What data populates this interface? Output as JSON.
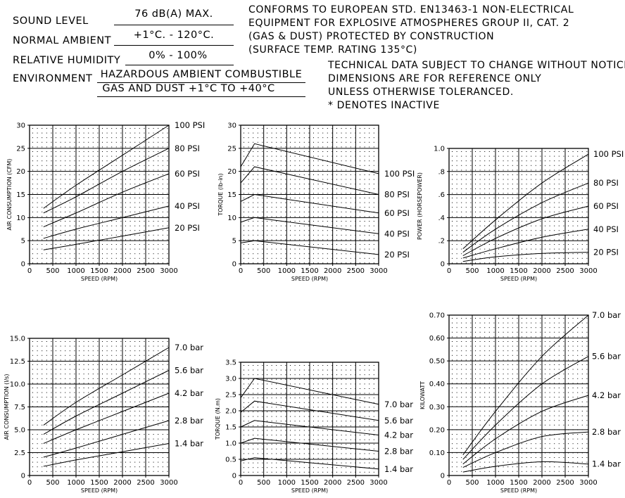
{
  "specs": {
    "sound_level_label": "SOUND LEVEL",
    "sound_level_value": "76 dB(A) MAX.",
    "normal_ambient_label": "NORMAL AMBIENT",
    "normal_ambient_value": "+1°C. - 120°C.",
    "relative_humidity_label": "RELATIVE HUMIDITY",
    "relative_humidity_value": "0% - 100%",
    "environment_label": "ENVIRONMENT",
    "environment_value_1": "HAZARDOUS AMBIENT COMBUSTIBLE",
    "environment_value_2": "GAS AND DUST +1°C TO +40°C"
  },
  "conformity": [
    "CONFORMS TO EUROPEAN STD. EN13463-1 NON-ELECTRICAL",
    "EQUIPMENT FOR EXPLOSIVE ATMOSPHERES GROUP II, CAT. 2",
    "(GAS & DUST) PROTECTED BY CONSTRUCTION",
    "(SURFACE TEMP. RATING 135°C)"
  ],
  "notes": [
    "TECHNICAL DATA SUBJECT TO CHANGE WITHOUT NOTICE.",
    "DIMENSIONS ARE FOR REFERENCE ONLY",
    "UNLESS OTHERWISE TOLERANCED.",
    "* DENOTES INACTIVE"
  ],
  "chart_data": [
    {
      "type": "line",
      "xlabel": "SPEED (RPM)",
      "ylabel": "AIR CONSUMPTION (CFM)",
      "xlim": [
        0,
        3000
      ],
      "ylim": [
        0,
        30
      ],
      "xticks": [
        "0",
        "500",
        "1000",
        "1500",
        "2000",
        "2500",
        "3000"
      ],
      "yticks": [
        "0",
        "5",
        "10",
        "15",
        "20",
        "25",
        "30"
      ],
      "x": [
        300,
        1000,
        2000,
        3000
      ],
      "series": [
        {
          "name": "100 PSI",
          "values": [
            12,
            17,
            23.5,
            30
          ]
        },
        {
          "name": "80 PSI",
          "values": [
            11,
            14.5,
            20,
            25
          ]
        },
        {
          "name": "60 PSI",
          "values": [
            8,
            11,
            15.5,
            19.5
          ]
        },
        {
          "name": "40 PSI",
          "values": [
            5.5,
            7.5,
            10,
            12.5
          ]
        },
        {
          "name": "20 PSI",
          "values": [
            3,
            4.2,
            6,
            7.8
          ]
        }
      ]
    },
    {
      "type": "line",
      "xlabel": "SPEED (RPM)",
      "ylabel": "TORQUE (lb-in)",
      "xlim": [
        0,
        3000
      ],
      "ylim": [
        0,
        30
      ],
      "xticks": [
        "0",
        "500",
        "1000",
        "1500",
        "2000",
        "2500",
        "3000"
      ],
      "yticks": [
        "0",
        "5",
        "10",
        "15",
        "20",
        "25",
        "30"
      ],
      "x": [
        0,
        300,
        3000
      ],
      "series": [
        {
          "name": "100 PSI",
          "values": [
            21,
            26,
            19.5
          ]
        },
        {
          "name": "80 PSI",
          "values": [
            17.5,
            21,
            15
          ]
        },
        {
          "name": "60 PSI",
          "values": [
            13.5,
            15,
            11
          ]
        },
        {
          "name": "40 PSI",
          "values": [
            9,
            10,
            6.5
          ]
        },
        {
          "name": "20 PSI",
          "values": [
            4.5,
            5,
            2
          ]
        }
      ]
    },
    {
      "type": "line",
      "xlabel": "SPEED (RPM)",
      "ylabel": "POWER (HORSEPOWER)",
      "xlim": [
        0,
        3000
      ],
      "ylim": [
        0,
        1.0
      ],
      "xticks": [
        "0",
        "500",
        "1000",
        "1500",
        "2000",
        "2500",
        "3000"
      ],
      "yticks": [
        "0",
        ".2",
        ".4",
        ".6",
        ".8",
        "1.0"
      ],
      "x": [
        300,
        1000,
        2000,
        3000
      ],
      "series": [
        {
          "name": "100 PSI",
          "values": [
            0.13,
            0.38,
            0.7,
            0.95
          ]
        },
        {
          "name": "80 PSI",
          "values": [
            0.1,
            0.3,
            0.53,
            0.7
          ]
        },
        {
          "name": "60 PSI",
          "values": [
            0.07,
            0.22,
            0.39,
            0.5
          ]
        },
        {
          "name": "40 PSI",
          "values": [
            0.05,
            0.13,
            0.23,
            0.3
          ]
        },
        {
          "name": "20 PSI",
          "values": [
            0.02,
            0.06,
            0.09,
            0.1
          ]
        }
      ]
    },
    {
      "type": "line",
      "xlabel": "SPEED (RPM)",
      "ylabel": "AIR CONSUMPTION (l/s)",
      "xlim": [
        0,
        3000
      ],
      "ylim": [
        0,
        15
      ],
      "xticks": [
        "0",
        "500",
        "1000",
        "1500",
        "2000",
        "2500",
        "3000"
      ],
      "yticks": [
        "0",
        "2.5",
        "5.0",
        "7.5",
        "10.0",
        "12.5",
        "15.0"
      ],
      "x": [
        300,
        1000,
        2000,
        3000
      ],
      "series": [
        {
          "name": "7.0 bar",
          "values": [
            5.5,
            8,
            11,
            14
          ]
        },
        {
          "name": "5.6 bar",
          "values": [
            4.5,
            6.5,
            9,
            11.5
          ]
        },
        {
          "name": "4.2 bar",
          "values": [
            3.5,
            5,
            7,
            9
          ]
        },
        {
          "name": "2.8 bar",
          "values": [
            2,
            3,
            4.5,
            6
          ]
        },
        {
          "name": "1.4 bar",
          "values": [
            1,
            1.7,
            2.6,
            3.5
          ]
        }
      ]
    },
    {
      "type": "line",
      "xlabel": "SPEED (RPM)",
      "ylabel": "TORQUE (N.m)",
      "xlim": [
        0,
        3000
      ],
      "ylim": [
        0,
        3.5
      ],
      "xticks": [
        "0",
        "500",
        "1000",
        "1500",
        "2000",
        "2500",
        "3000"
      ],
      "yticks": [
        "0",
        "0.5",
        "1.0",
        "1.5",
        "2.0",
        "2.5",
        "3.0",
        "3.5"
      ],
      "x": [
        0,
        300,
        3000
      ],
      "series": [
        {
          "name": "7.0 bar",
          "values": [
            2.4,
            3.0,
            2.2
          ]
        },
        {
          "name": "5.6 bar",
          "values": [
            1.95,
            2.3,
            1.7
          ]
        },
        {
          "name": "4.2 bar",
          "values": [
            1.5,
            1.7,
            1.25
          ]
        },
        {
          "name": "2.8 bar",
          "values": [
            1.0,
            1.15,
            0.75
          ]
        },
        {
          "name": "1.4 bar",
          "values": [
            0.45,
            0.55,
            0.2
          ]
        }
      ]
    },
    {
      "type": "line",
      "xlabel": "SPEED (RPM)",
      "ylabel": "KILOWATT",
      "xlim": [
        0,
        3000
      ],
      "ylim": [
        0,
        0.7
      ],
      "xticks": [
        "0",
        "500",
        "1000",
        "1500",
        "2000",
        "2500",
        "3000"
      ],
      "yticks": [
        "0",
        "0.10",
        "0.20",
        "0.30",
        "0.40",
        "0.50",
        "0.60",
        "0.70"
      ],
      "x": [
        300,
        1000,
        2000,
        3000
      ],
      "series": [
        {
          "name": "7.0 bar",
          "values": [
            0.09,
            0.28,
            0.52,
            0.7
          ]
        },
        {
          "name": "5.6 bar",
          "values": [
            0.07,
            0.22,
            0.4,
            0.52
          ]
        },
        {
          "name": "4.2 bar",
          "values": [
            0.05,
            0.16,
            0.28,
            0.35
          ]
        },
        {
          "name": "2.8 bar",
          "values": [
            0.035,
            0.1,
            0.17,
            0.19
          ]
        },
        {
          "name": "1.4 bar",
          "values": [
            0.015,
            0.04,
            0.06,
            0.05
          ]
        }
      ]
    }
  ]
}
